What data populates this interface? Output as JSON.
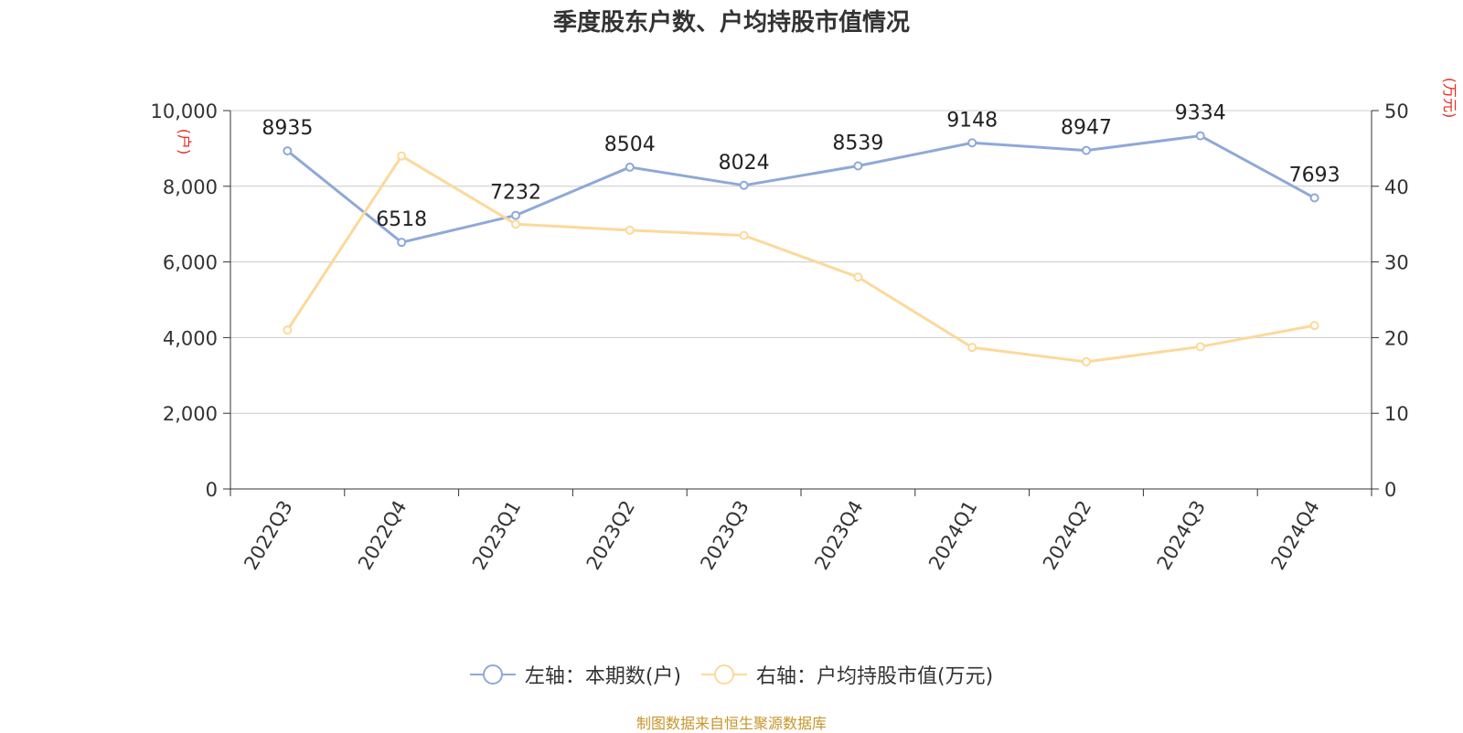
{
  "title": "季度股东户数、户均持股市值情况",
  "source_note": "制图数据来自恒生聚源数据库",
  "legend": {
    "left_label": "左轴：本期数(户)",
    "right_label": "右轴：户均持股市值(万元)"
  },
  "colors": {
    "holders_line": "#8ea9d8",
    "value_line": "#fcd99a",
    "axis_unit": "#e8291d",
    "grid": "#cccccc",
    "axis": "#333333",
    "source": "#c8952a"
  },
  "chart_data": {
    "type": "line",
    "categories": [
      "2022Q3",
      "2022Q4",
      "2023Q1",
      "2023Q2",
      "2023Q3",
      "2023Q4",
      "2024Q1",
      "2024Q2",
      "2024Q3",
      "2024Q4"
    ],
    "left_axis": {
      "unit": "(户)",
      "range": [
        0,
        10000
      ],
      "ticks": [
        0,
        2000,
        4000,
        6000,
        8000,
        10000
      ],
      "tick_labels": [
        "0",
        "2,000",
        "4,000",
        "6,000",
        "8,000",
        "10,000"
      ]
    },
    "right_axis": {
      "unit": "(万元)",
      "range": [
        0,
        50
      ],
      "ticks": [
        0,
        10,
        20,
        30,
        40,
        50
      ],
      "tick_labels": [
        "0",
        "10",
        "20",
        "30",
        "40",
        "50"
      ]
    },
    "series": [
      {
        "name": "左轴：本期数(户)",
        "axis": "left",
        "values": [
          8935,
          6518,
          7232,
          8504,
          8024,
          8539,
          9148,
          8947,
          9334,
          7693
        ],
        "data_labels": [
          "8935",
          "6518",
          "7232",
          "8504",
          "8024",
          "8539",
          "9148",
          "8947",
          "9334",
          "7693"
        ]
      },
      {
        "name": "右轴：户均持股市值(万元)",
        "axis": "right",
        "values": [
          21.0,
          44.0,
          35.0,
          34.2,
          33.5,
          28.0,
          18.7,
          16.8,
          18.8,
          21.6
        ]
      }
    ],
    "grid": true,
    "legend_position": "bottom"
  }
}
